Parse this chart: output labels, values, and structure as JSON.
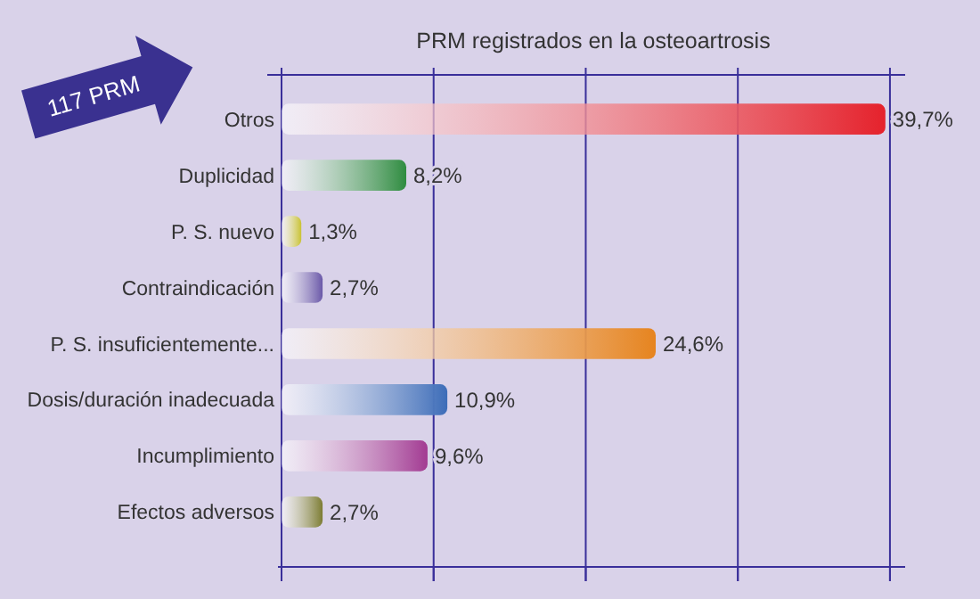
{
  "chart_data": {
    "type": "bar",
    "orientation": "horizontal",
    "title": "PRM registrados en la osteoartrosis",
    "categories": [
      "Otros",
      "Duplicidad",
      "P. S. nuevo",
      "Contraindicación",
      "P. S. insuficientemente...",
      "Dosis/duración inadecuada",
      "Incumplimiento",
      "Efectos adversos"
    ],
    "values": [
      39.7,
      8.2,
      1.3,
      2.7,
      24.6,
      10.9,
      9.6,
      2.7
    ],
    "value_labels": [
      "39,7%",
      "8,2%",
      "1,3%",
      "2,7%",
      "24,6%",
      "10,9%",
      "9,6%",
      "2,7%"
    ],
    "colors": [
      "#e5222c",
      "#2f8c40",
      "#c9c232",
      "#6a58a8",
      "#e6841f",
      "#3c6cb8",
      "#a23a92",
      "#7c7c32"
    ],
    "xlim": [
      0,
      41
    ],
    "xticks": [
      {
        "value": 0,
        "label": null
      },
      {
        "value": 10,
        "label": null
      },
      {
        "value": 20,
        "label": null
      },
      {
        "value": 30,
        "label": null
      },
      {
        "value": 40,
        "label": null
      }
    ],
    "tick_labels": "y",
    "grid": "x",
    "annotations": [
      "117 PRM"
    ]
  }
}
